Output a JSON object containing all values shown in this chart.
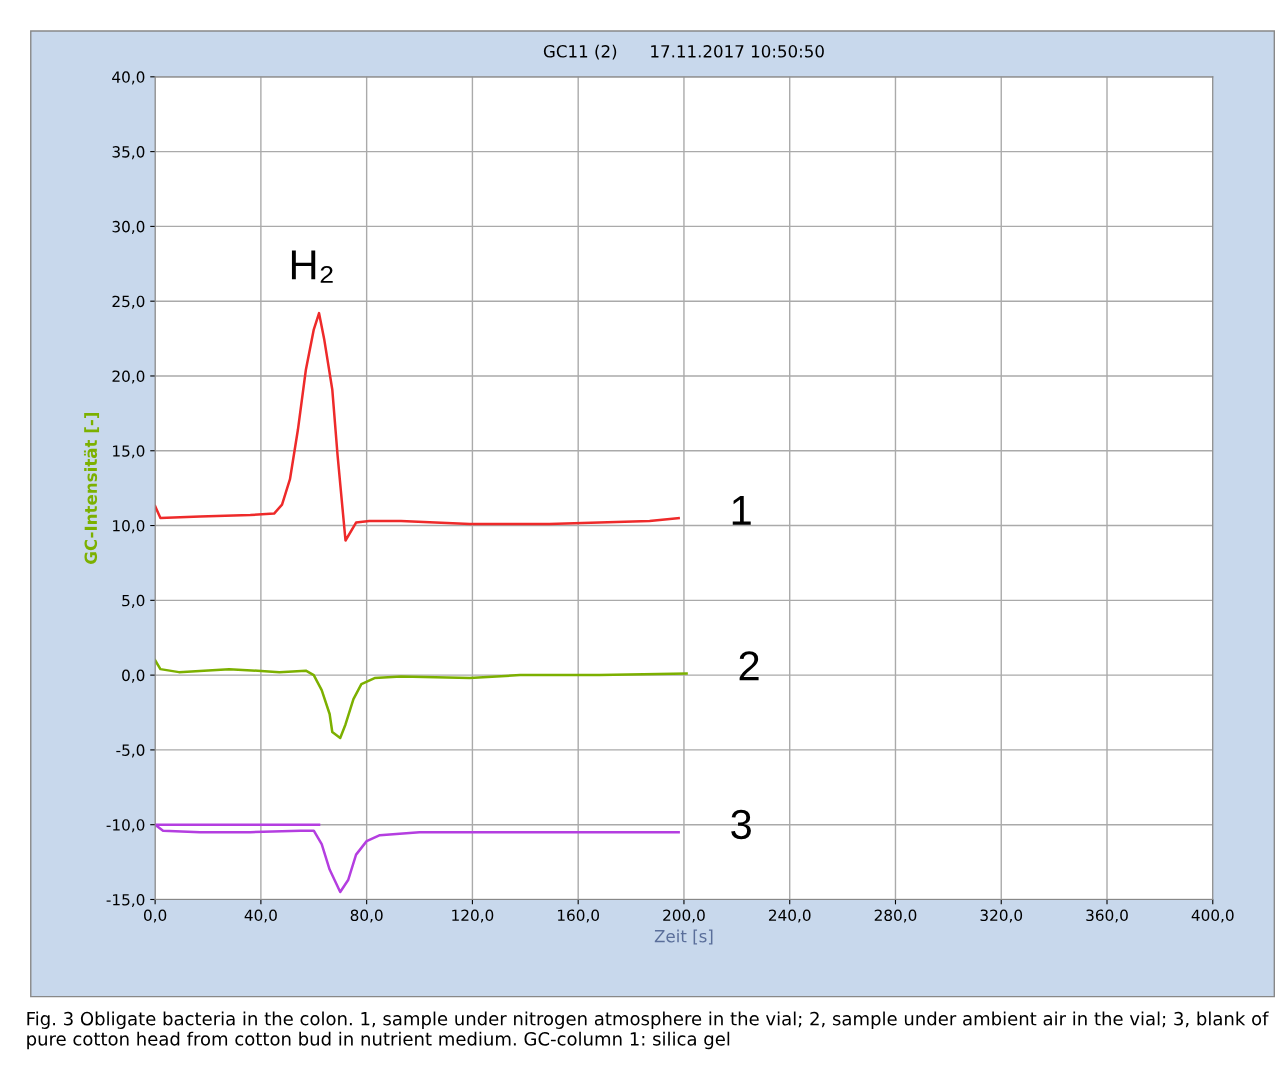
{
  "chart_data": {
    "type": "line",
    "title": "GC11 (2)      17.11.2017 10:50:50",
    "xlabel": "Zeit [s]",
    "ylabel": "GC-Intensität [-]",
    "xlim": [
      0,
      400
    ],
    "ylim": [
      -15,
      40
    ],
    "xticks": [
      {
        "value": 0,
        "label": "0,0"
      },
      {
        "value": 40,
        "label": "40,0"
      },
      {
        "value": 80,
        "label": "80,0"
      },
      {
        "value": 120,
        "label": "120,0"
      },
      {
        "value": 160,
        "label": "160,0"
      },
      {
        "value": 200,
        "label": "200,0"
      },
      {
        "value": 240,
        "label": "240,0"
      },
      {
        "value": 280,
        "label": "280,0"
      },
      {
        "value": 320,
        "label": "320,0"
      },
      {
        "value": 360,
        "label": "360,0"
      },
      {
        "value": 400,
        "label": "400,0"
      }
    ],
    "yticks": [
      {
        "value": -15,
        "label": "-15,0"
      },
      {
        "value": -10,
        "label": "-10,0"
      },
      {
        "value": -5,
        "label": "-5,0"
      },
      {
        "value": 0,
        "label": "0,0"
      },
      {
        "value": 5,
        "label": "5,0"
      },
      {
        "value": 10,
        "label": "10,0"
      },
      {
        "value": 15,
        "label": "15,0"
      },
      {
        "value": 20,
        "label": "20,0"
      },
      {
        "value": 25,
        "label": "25,0"
      },
      {
        "value": 30,
        "label": "30,0"
      },
      {
        "value": 35,
        "label": "35,0"
      },
      {
        "value": 40,
        "label": "40,0"
      }
    ],
    "grid": true,
    "legend": false,
    "marker": "none",
    "line_style": "solid",
    "series": [
      {
        "name": "1",
        "color": "#ee2a2a",
        "x": [
          0,
          2,
          17,
          36,
          45,
          48,
          51,
          54,
          57,
          60,
          62,
          64,
          67,
          69,
          72,
          76,
          81,
          93,
          119,
          149,
          168,
          187,
          198
        ],
        "values": [
          11.3,
          10.5,
          10.6,
          10.7,
          10.8,
          11.4,
          13.1,
          16.4,
          20.4,
          23.1,
          24.2,
          22.4,
          19.1,
          14.7,
          9.0,
          10.2,
          10.3,
          10.3,
          10.1,
          10.1,
          10.2,
          10.3,
          10.5
        ]
      },
      {
        "name": "2",
        "color": "#7cb000",
        "x": [
          0,
          2,
          9,
          28,
          47,
          57,
          60,
          63,
          66,
          67,
          70,
          72,
          75,
          78,
          83,
          93,
          119,
          138,
          168,
          201
        ],
        "values": [
          1.0,
          0.4,
          0.2,
          0.4,
          0.2,
          0.3,
          0.0,
          -1.0,
          -2.6,
          -3.8,
          -4.2,
          -3.3,
          -1.6,
          -0.6,
          -0.2,
          -0.1,
          -0.2,
          0.0,
          0.0,
          0.1
        ]
      },
      {
        "name": "3",
        "color": "#b43ee0",
        "x": [
          0,
          3,
          17,
          36,
          55,
          60,
          63,
          66,
          70,
          73,
          76,
          80,
          85,
          100,
          130,
          149,
          198
        ],
        "values": [
          -10.0,
          -10.4,
          -10.5,
          -10.5,
          -10.4,
          -10.4,
          -11.3,
          -13.0,
          -14.5,
          -13.7,
          -12.0,
          -11.1,
          -10.7,
          -10.5,
          -10.5,
          -10.5,
          -10.5
        ]
      },
      {
        "color": "#b43ee0",
        "x": [
          0,
          62
        ],
        "values": [
          -10.0,
          -10.0
        ]
      }
    ],
    "annotations": [
      "H₂",
      "Fig. 3 Obligate bacteria in the colon. 1, sample under nitrogen atmosphere in the vial; 2, sample under ambient air in the vial; 3, blank of pure cotton head from cotton bud in nutrient medium. GC-column 1: silica gel"
    ]
  }
}
